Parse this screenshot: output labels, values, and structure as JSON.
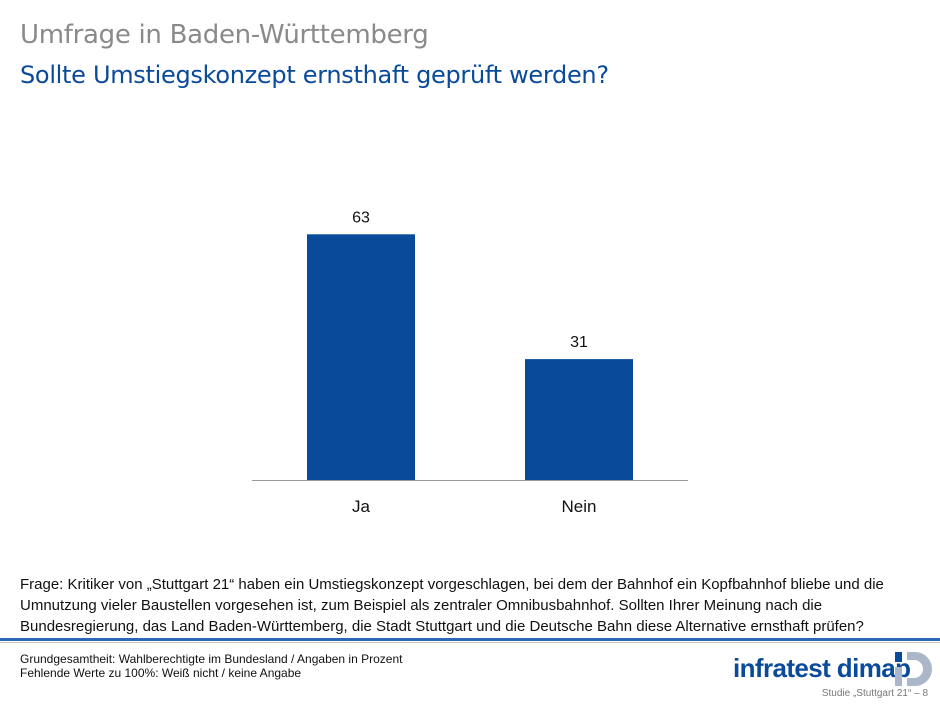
{
  "header": {
    "title": "Umfrage in Baden-Württemberg",
    "subtitle": "Sollte Umstiegskonzept ernsthaft geprüft werden?"
  },
  "chart_data": {
    "type": "bar",
    "categories": [
      "Ja",
      "Nein"
    ],
    "values": [
      63,
      31
    ],
    "data_labels": [
      "63",
      "31"
    ],
    "title": "Sollte Umstiegskonzept ernsthaft geprüft werden?",
    "xlabel": "",
    "ylabel": "",
    "ylim": [
      0,
      100
    ],
    "grid": false,
    "bar_color": "#0a4a9a"
  },
  "question": "Frage: Kritiker von „Stuttgart 21“ haben ein Umstiegskonzept vorgeschlagen, bei dem der Bahnhof ein Kopfbahnhof bliebe und die Umnutzung vieler Baustellen vorgesehen ist, zum Beispiel als zentraler Omnibusbahnhof. Sollten Ihrer Meinung nach die Bundesregierung, das Land Baden-Württemberg, die Stadt Stuttgart und die Deutsche Bahn diese Alternative ernsthaft prüfen?",
  "footer": {
    "base": "Grundgesamtheit: Wahlberechtigte im Bundesland / Angaben in Prozent",
    "missing": "Fehlende Werte zu 100%: Weiß nicht / keine Angabe",
    "logo": "infratest dimap",
    "study": "Studie „Stuttgart 21“ – 8"
  },
  "colors": {
    "brand_blue": "#0a4a9a",
    "title_grey": "#8a8a8a",
    "rule_blue": "#2f66b6"
  }
}
